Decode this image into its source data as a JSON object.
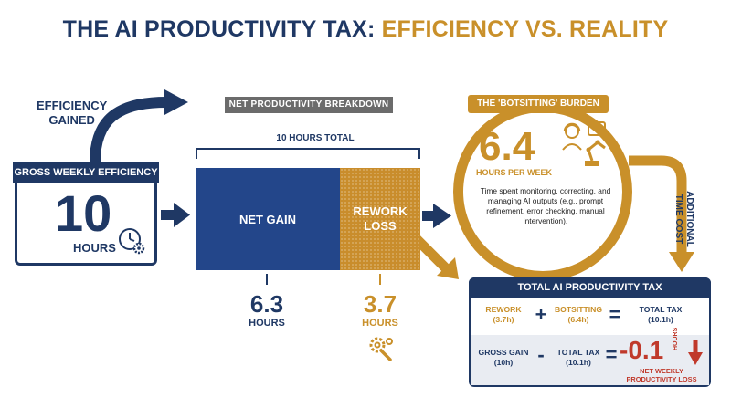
{
  "title": {
    "part1": "THE AI PRODUCTIVITY TAX: ",
    "part2": "EFFICIENCY VS. REALITY"
  },
  "gross": {
    "header": "GROSS WEEKLY EFFICIENCY",
    "value": "10",
    "unit": "HOURS",
    "gained_line1": "EFFICIENCY",
    "gained_line2": "GAINED",
    "icon": "clock-gear-icon"
  },
  "breakdown": {
    "label": "NET PRODUCTIVITY BREAKDOWN",
    "total_label": "10 HOURS TOTAL",
    "net_gain_label": "NET GAIN",
    "rework_line1": "REWORK",
    "rework_line2": "LOSS",
    "net_value": "6.3",
    "net_unit": "HOURS",
    "rework_value": "3.7",
    "rework_unit": "HOURS",
    "icon": "wrench-gear-icon"
  },
  "botsitting": {
    "label": "THE 'BOTSITTING' BURDEN",
    "value": "6.4",
    "unit": "HOURS PER WEEK",
    "description": "Time spent monitoring, correcting, and managing AI outputs (e.g., prompt refinement, error checking, manual intervention).",
    "icon": "person-robot-arm-icon",
    "cost_line1": "ADDITIONAL",
    "cost_line2": "TIME COST"
  },
  "tax": {
    "header": "TOTAL AI PRODUCTIVITY TAX",
    "row1": {
      "a_label": "REWORK",
      "a_value": "(3.7h)",
      "op1": "+",
      "b_label": "BOTSITTING",
      "b_value": "(6.4h)",
      "op2": "=",
      "c_label": "TOTAL TAX",
      "c_value": "(10.1h)"
    },
    "row2": {
      "a_label": "GROSS GAIN",
      "a_value": "(10h)",
      "op1": "-",
      "b_label": "TOTAL TAX",
      "b_value": "(10.1h)",
      "op2": "=",
      "result": "-0.1",
      "result_unit": "HOURS",
      "result_line1": "NET WEEKLY",
      "result_line2": "PRODUCTIVITY LOSS"
    }
  },
  "colors": {
    "navy": "#1f3864",
    "gold": "#c9902a",
    "blue_bar": "#23468a",
    "loss_red": "#c0392b"
  }
}
